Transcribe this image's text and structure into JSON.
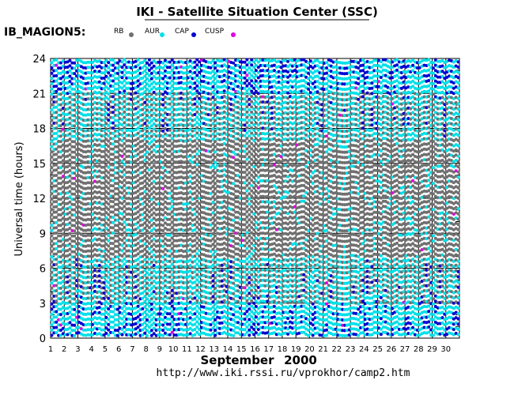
{
  "chart_data": {
    "type": "scatter",
    "title": "IKI - Satellite Situation Center (SSC)",
    "satellite": "IB_MAGION5:",
    "xlabel_month": "September",
    "xlabel_year": "2000",
    "ylabel": "Universal time (hours)",
    "url": "http://www.iki.rssi.ru/vprokhor/camp2.htm",
    "xlim": [
      1,
      31
    ],
    "ylim": [
      0,
      24
    ],
    "x_ticks": [
      "1",
      "2",
      "3",
      "4",
      "5",
      "6",
      "7",
      "8",
      "9",
      "10",
      "11",
      "12",
      "13",
      "14",
      "15",
      "16",
      "17",
      "18",
      "19",
      "20",
      "21",
      "22",
      "23",
      "24",
      "25",
      "26",
      "27",
      "28",
      "29",
      "30"
    ],
    "y_ticks": [
      "0",
      "3",
      "6",
      "9",
      "12",
      "15",
      "18",
      "21",
      "24"
    ],
    "grid": true,
    "legend": [
      {
        "name": "RB",
        "color": "#707070"
      },
      {
        "name": "AUR",
        "color": "#00e0e8"
      },
      {
        "name": "CAP",
        "color": "#0000d0"
      },
      {
        "name": "CUSP",
        "color": "#e000e0"
      }
    ],
    "passes_per_day": 6,
    "sample_step_hours": 0.45,
    "note_series": "Each day shows orbit passes as vertical dotted columns, colored by region (RB, AUR, CAP, CUSP) against Universal Time."
  }
}
